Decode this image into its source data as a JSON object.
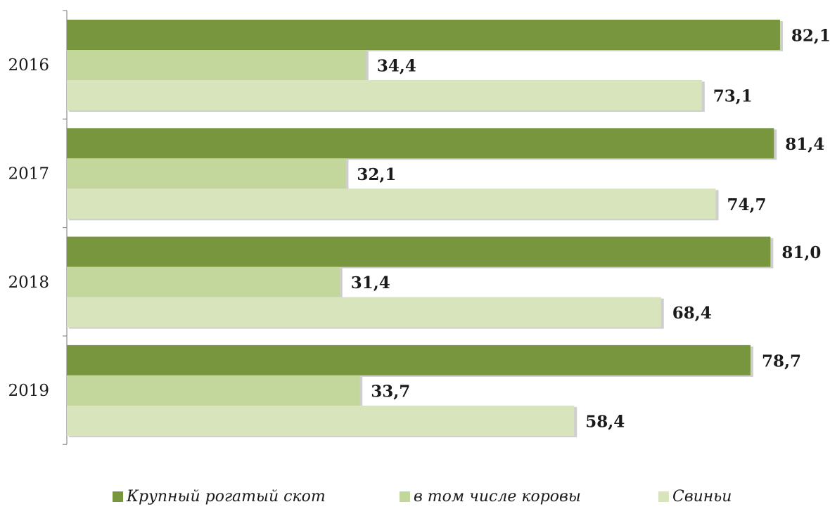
{
  "chart_data": {
    "type": "bar",
    "orientation": "horizontal",
    "categories": [
      "2016",
      "2017",
      "2018",
      "2019"
    ],
    "series": [
      {
        "name": "Крупный рогатый скот",
        "values": [
          82.1,
          81.4,
          81.0,
          78.7
        ],
        "labels": [
          "82,1",
          "81,4",
          "81,0",
          "78,7"
        ],
        "color": "#77963d"
      },
      {
        "name": "в том числе коровы",
        "values": [
          34.4,
          32.1,
          31.4,
          33.7
        ],
        "labels": [
          "34,4",
          "32,1",
          "31,4",
          "33,7"
        ],
        "color": "#c3d69b"
      },
      {
        "name": "Свиньи",
        "values": [
          73.1,
          74.7,
          68.4,
          58.4
        ],
        "labels": [
          "73,1",
          "74,7",
          "68,4",
          "58,4"
        ],
        "color": "#d8e4bc"
      }
    ],
    "xlim": [
      0,
      100
    ],
    "grid": false,
    "legend_position": "bottom",
    "title": "",
    "xlabel": "",
    "ylabel": ""
  }
}
